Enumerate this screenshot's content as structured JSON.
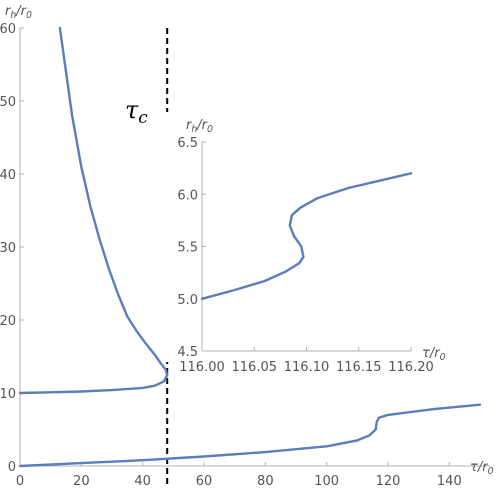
{
  "chart_data": [
    {
      "type": "line",
      "xlabel": "τ/r0",
      "ylabel": "rh/r0",
      "xlim": [
        0,
        150
      ],
      "ylim": [
        0,
        60
      ],
      "xticks": [
        0,
        20,
        40,
        60,
        80,
        100,
        120,
        140
      ],
      "yticks": [
        0,
        10,
        20,
        30,
        40,
        50,
        60
      ],
      "annotation": {
        "text": "τc",
        "x": 48
      },
      "series": [
        {
          "points": [
            [
              13,
              60
            ],
            [
              15,
              54
            ],
            [
              17,
              48
            ],
            [
              20,
              41
            ],
            [
              23,
              35.5
            ],
            [
              26,
              31
            ],
            [
              29,
              27
            ],
            [
              32,
              23.5
            ],
            [
              35,
              20.5
            ],
            [
              38,
              18.5
            ],
            [
              41,
              16.8
            ],
            [
              44,
              15.2
            ],
            [
              46,
              14
            ],
            [
              47.5,
              13.2
            ],
            [
              48,
              12.5
            ],
            [
              47,
              11.6
            ],
            [
              44,
              11
            ],
            [
              40,
              10.7
            ],
            [
              30,
              10.4
            ],
            [
              20,
              10.2
            ],
            [
              10,
              10.1
            ],
            [
              0,
              10
            ]
          ]
        },
        {
          "points": [
            [
              0,
              0
            ],
            [
              20,
              0.4
            ],
            [
              40,
              0.8
            ],
            [
              60,
              1.3
            ],
            [
              80,
              1.9
            ],
            [
              100,
              2.7
            ],
            [
              110,
              3.5
            ],
            [
              114,
              4.2
            ],
            [
              116,
              5
            ],
            [
              116.3,
              6
            ],
            [
              117,
              6.6
            ],
            [
              120,
              7
            ],
            [
              135,
              7.8
            ],
            [
              150,
              8.4
            ]
          ]
        }
      ]
    },
    {
      "type": "line",
      "xlabel": "τ/r0",
      "ylabel": "rh/r0",
      "xlim": [
        116.0,
        116.2
      ],
      "ylim": [
        4.5,
        6.5
      ],
      "xticks": [
        "116.00",
        "116.05",
        "116.10",
        "116.15",
        "116.20"
      ],
      "yticks": [
        "4.5",
        "5.0",
        "5.5",
        "6.0",
        "6.5"
      ],
      "series": [
        {
          "points": [
            [
              116.0,
              5.0
            ],
            [
              116.03,
              5.08
            ],
            [
              116.06,
              5.17
            ],
            [
              116.08,
              5.26
            ],
            [
              116.093,
              5.34
            ],
            [
              116.097,
              5.4
            ],
            [
              116.095,
              5.5
            ],
            [
              116.088,
              5.6
            ],
            [
              116.084,
              5.7
            ],
            [
              116.086,
              5.8
            ],
            [
              116.094,
              5.87
            ],
            [
              116.11,
              5.96
            ],
            [
              116.14,
              6.06
            ],
            [
              116.17,
              6.13
            ],
            [
              116.2,
              6.2
            ]
          ]
        }
      ]
    }
  ]
}
